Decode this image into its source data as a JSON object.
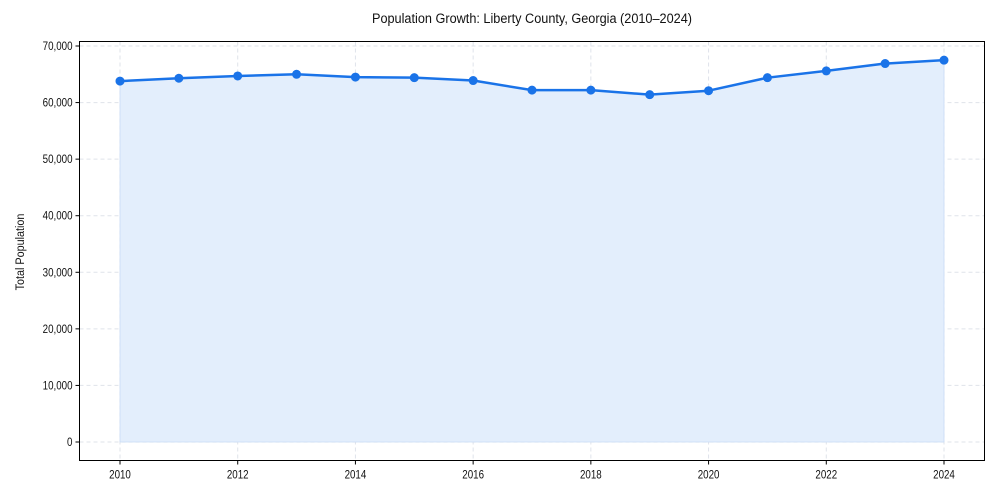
{
  "chart_data": {
    "type": "area",
    "title": "Population Growth: Liberty County, Georgia (2010–2024)",
    "xlabel": "",
    "ylabel": "Total Population",
    "x": [
      2010,
      2011,
      2012,
      2013,
      2014,
      2015,
      2016,
      2017,
      2018,
      2019,
      2020,
      2021,
      2022,
      2023,
      2024
    ],
    "series": [
      {
        "name": "Total Population",
        "values": [
          63800,
          64300,
          64700,
          65000,
          64500,
          64400,
          63900,
          62200,
          62200,
          61400,
          62100,
          64400,
          65600,
          66900,
          67500
        ],
        "color": "#1a73e8",
        "fill": "#e3eefc"
      }
    ],
    "xticks": [
      2010,
      2012,
      2014,
      2016,
      2018,
      2020,
      2022,
      2024
    ],
    "yticks": [
      0,
      10000,
      20000,
      30000,
      40000,
      50000,
      60000,
      70000
    ],
    "ytick_labels": [
      "0",
      "10,000",
      "20,000",
      "30,000",
      "40,000",
      "50,000",
      "60,000",
      "70,000"
    ],
    "xlim": [
      2009.3,
      2024.7
    ],
    "ylim": [
      -3500,
      71000
    ],
    "grid": true,
    "legend": "none"
  }
}
